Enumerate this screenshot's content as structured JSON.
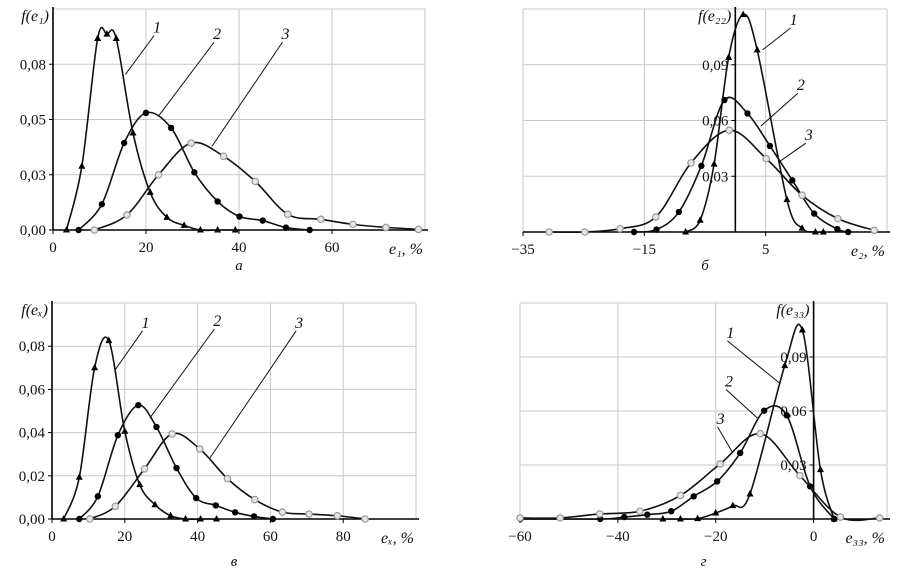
{
  "chart_data": [
    {
      "id": "a",
      "type": "line",
      "panel_label": "а",
      "ylabel": "f(e₁)",
      "xlabel": "e₁, %",
      "xlim": [
        0,
        80
      ],
      "ylim": [
        0,
        0.11
      ],
      "xticks": [
        {
          "v": 0,
          "label": "0"
        },
        {
          "v": 20,
          "label": "20"
        },
        {
          "v": 40,
          "label": "40"
        },
        {
          "v": 60,
          "label": "60"
        }
      ],
      "xgrid": [
        0,
        20,
        40,
        60,
        80
      ],
      "yticks": [
        {
          "v": 0,
          "label": "0,00"
        },
        {
          "v": 0.0275,
          "label": "0,03"
        },
        {
          "v": 0.055,
          "label": "0,05"
        },
        {
          "v": 0.0825,
          "label": "0,08"
        }
      ],
      "ygrid": [
        0.0275,
        0.055,
        0.0825,
        0.11
      ],
      "yaxis_at_zero": false,
      "series": [
        {
          "name": "1",
          "marker": "triangle",
          "points": [
            [
              2.9,
              0
            ],
            [
              6.2,
              0.0317
            ],
            [
              9.6,
              0.0953
            ],
            [
              11.6,
              0.0975
            ],
            [
              13.6,
              0.0953
            ],
            [
              17.2,
              0.0483
            ],
            [
              20.9,
              0.0187
            ],
            [
              24.5,
              0.0063
            ],
            [
              28.2,
              0.0023
            ],
            [
              31.7,
              0
            ],
            [
              35.4,
              0
            ],
            [
              39.2,
              0
            ]
          ]
        },
        {
          "name": "2",
          "marker": "circle",
          "points": [
            [
              5.5,
              0
            ],
            [
              10.5,
              0.0128
            ],
            [
              15.3,
              0.0433
            ],
            [
              20,
              0.0583
            ],
            [
              25.4,
              0.0508
            ],
            [
              30.4,
              0.0287
            ],
            [
              35.4,
              0.0142
            ],
            [
              40.1,
              0.0067
            ],
            [
              45.1,
              0.0047
            ],
            [
              50.1,
              0.0012
            ],
            [
              55.2,
              0
            ]
          ]
        },
        {
          "name": "3",
          "marker": "open-circle",
          "points": [
            [
              8.9,
              0
            ],
            [
              15.9,
              0.0075
            ],
            [
              22.7,
              0.0275
            ],
            [
              29.7,
              0.0433
            ],
            [
              36.7,
              0.0367
            ],
            [
              43.5,
              0.0242
            ],
            [
              50.5,
              0.0078
            ],
            [
              57.6,
              0.0053
            ],
            [
              64.5,
              0.0028
            ],
            [
              71.6,
              0.0013
            ],
            [
              78.6,
              0.0003
            ]
          ]
        }
      ],
      "annotations": [
        {
          "text": "1",
          "at": [
            22.4,
            0.0983
          ],
          "to": [
            15.6,
            0.0775
          ]
        },
        {
          "text": "2",
          "at": [
            35.3,
            0.095
          ],
          "to": [
            22.7,
            0.0567
          ]
        },
        {
          "text": "3",
          "at": [
            50,
            0.095
          ],
          "to": [
            34.2,
            0.0417
          ]
        }
      ]
    },
    {
      "id": "b",
      "type": "line",
      "panel_label": "б",
      "ylabel": "f(e₂₂)",
      "xlabel": "e₂, %",
      "xlim": [
        -35,
        25
      ],
      "ylim": [
        0,
        0.12
      ],
      "xticks": [
        {
          "v": -35,
          "label": "−35"
        },
        {
          "v": -15,
          "label": "−15"
        },
        {
          "v": 5,
          "label": "5"
        }
      ],
      "xgrid": [
        -35,
        -15,
        5,
        25
      ],
      "yticks": [
        {
          "v": 0.03,
          "label": "0,03"
        },
        {
          "v": 0.06,
          "label": "0,06"
        },
        {
          "v": 0.09,
          "label": "0,09"
        }
      ],
      "ygrid": [
        0.03,
        0.06,
        0.09,
        0.12
      ],
      "yaxis_at_zero": true,
      "series": [
        {
          "name": "1",
          "marker": "triangle",
          "points": [
            [
              -8.2,
              0
            ],
            [
              -5.8,
              0.0063
            ],
            [
              -3.5,
              0.0365
            ],
            [
              -1.1,
              0.094
            ],
            [
              1.3,
              0.117
            ],
            [
              3.6,
              0.098
            ],
            [
              8.5,
              0.0174
            ],
            [
              11,
              0.002
            ],
            [
              13.2,
              0
            ],
            [
              14.5,
              0
            ]
          ]
        },
        {
          "name": "2",
          "marker": "circle",
          "points": [
            [
              -16.7,
              0
            ],
            [
              -13,
              0.0013
            ],
            [
              -9.3,
              0.0108
            ],
            [
              -5.6,
              0.0356
            ],
            [
              -1.8,
              0.071
            ],
            [
              2,
              0.0638
            ],
            [
              5.7,
              0.0463
            ],
            [
              9.4,
              0.0278
            ],
            [
              13,
              0.0099
            ],
            [
              16.8,
              0.0016
            ],
            [
              18.6,
              0
            ]
          ]
        },
        {
          "name": "3",
          "marker": "open-circle",
          "points": [
            [
              -30.7,
              0
            ],
            [
              -24.8,
              0
            ],
            [
              -19,
              0.0018
            ],
            [
              -13.1,
              0.0081
            ],
            [
              -7.3,
              0.0372
            ],
            [
              -1,
              0.0548
            ],
            [
              5.1,
              0.0395
            ],
            [
              11,
              0.0198
            ],
            [
              16.9,
              0.0072
            ],
            [
              22.9,
              0.0009
            ]
          ]
        }
      ],
      "annotations": [
        {
          "text": "1",
          "at": [
            9.6,
            0.1114
          ],
          "to": [
            4.5,
            0.098
          ]
        },
        {
          "text": "2",
          "at": [
            10.8,
            0.0763
          ],
          "to": [
            4.2,
            0.057
          ]
        },
        {
          "text": "3",
          "at": [
            12.1,
            0.0494
          ],
          "to": [
            7.2,
            0.0377
          ]
        }
      ]
    },
    {
      "id": "c",
      "type": "line",
      "panel_label": "в",
      "ylabel": "f(eₓ)",
      "xlabel": "eₓ, %",
      "xlim": [
        0,
        100
      ],
      "ylim": [
        0,
        0.1
      ],
      "xticks": [
        {
          "v": 0,
          "label": "0"
        },
        {
          "v": 20,
          "label": "20"
        },
        {
          "v": 40,
          "label": "40"
        },
        {
          "v": 60,
          "label": "60"
        },
        {
          "v": 80,
          "label": "80"
        }
      ],
      "xgrid": [
        0,
        20,
        40,
        60,
        80,
        100
      ],
      "yticks": [
        {
          "v": 0,
          "label": "0,00"
        },
        {
          "v": 0.02,
          "label": "0,02"
        },
        {
          "v": 0.04,
          "label": "0,04"
        },
        {
          "v": 0.06,
          "label": "0,06"
        },
        {
          "v": 0.08,
          "label": "0,08"
        }
      ],
      "ygrid": [
        0.02,
        0.04,
        0.06,
        0.08,
        0.1
      ],
      "yaxis_at_zero": false,
      "series": [
        {
          "name": "1",
          "marker": "triangle",
          "points": [
            [
              3.2,
              0
            ],
            [
              7.5,
              0.0193
            ],
            [
              11.7,
              0.07
            ],
            [
              15.6,
              0.0826
            ],
            [
              20,
              0.0406
            ],
            [
              24.1,
              0.0159
            ],
            [
              28.3,
              0.0066
            ],
            [
              32.6,
              0.0015
            ],
            [
              36.7,
              0
            ],
            [
              40.8,
              0
            ],
            [
              45.2,
              0
            ]
          ]
        },
        {
          "name": "2",
          "marker": "circle",
          "points": [
            [
              7.5,
              0
            ],
            [
              12.6,
              0.0105
            ],
            [
              18.1,
              0.0388
            ],
            [
              23.7,
              0.0527
            ],
            [
              28.7,
              0.0426
            ],
            [
              34.2,
              0.0236
            ],
            [
              39.6,
              0.0097
            ],
            [
              45,
              0.0063
            ],
            [
              50.3,
              0.0031
            ],
            [
              55.5,
              0.0012
            ],
            [
              60.7,
              0
            ]
          ]
        },
        {
          "name": "3",
          "marker": "open-circle",
          "points": [
            [
              10.4,
              0
            ],
            [
              17.4,
              0.0059
            ],
            [
              25.4,
              0.0232
            ],
            [
              33,
              0.0394
            ],
            [
              40.6,
              0.0324
            ],
            [
              48.2,
              0.0187
            ],
            [
              55.7,
              0.009
            ],
            [
              63.3,
              0.0032
            ],
            [
              70.6,
              0.0023
            ],
            [
              78.4,
              0.0015
            ],
            [
              86,
              0
            ]
          ]
        }
      ],
      "annotations": [
        {
          "text": "1",
          "at": [
            25.7,
            0.0885
          ],
          "to": [
            17.4,
            0.0692
          ]
        },
        {
          "text": "2",
          "at": [
            45.4,
            0.0893
          ],
          "to": [
            26.9,
            0.0468
          ]
        },
        {
          "text": "3",
          "at": [
            67.9,
            0.0885
          ],
          "to": [
            43.4,
            0.0283
          ]
        }
      ]
    },
    {
      "id": "d",
      "type": "line",
      "panel_label": "г",
      "ylabel": "f(e₃₃)",
      "xlabel": "e₃₃, %",
      "xlim": [
        -60,
        15
      ],
      "ylim": [
        0,
        0.12
      ],
      "xticks": [
        {
          "v": -60,
          "label": "−60"
        },
        {
          "v": -40,
          "label": "−40"
        },
        {
          "v": -20,
          "label": "−20"
        },
        {
          "v": 0,
          "label": "0"
        }
      ],
      "xgrid": [
        -60,
        -40,
        -20,
        0,
        15
      ],
      "yticks": [
        {
          "v": 0.03,
          "label": "0,03"
        },
        {
          "v": 0.06,
          "label": "0,06"
        },
        {
          "v": 0.09,
          "label": "0,09"
        }
      ],
      "ygrid": [
        0.03,
        0.06,
        0.09,
        0.12
      ],
      "yaxis_at_zero": true,
      "series": [
        {
          "name": "1",
          "marker": "triangle",
          "points": [
            [
              -30.8,
              0
            ],
            [
              -27.2,
              0
            ],
            [
              -23.7,
              0.0002
            ],
            [
              -20,
              0.0033
            ],
            [
              -16.5,
              0.0074
            ],
            [
              -13,
              0.0139
            ],
            [
              -5.9,
              0.0852
            ],
            [
              -2.3,
              0.105
            ],
            [
              1.4,
              0.0274
            ],
            [
              4.2,
              0
            ]
          ]
        },
        {
          "name": "2",
          "marker": "circle",
          "points": [
            [
              -59.9,
              0
            ],
            [
              -43.6,
              0
            ],
            [
              -38.7,
              0.0011
            ],
            [
              -34,
              0.0024
            ],
            [
              -29.1,
              0.0043
            ],
            [
              -24.5,
              0.0126
            ],
            [
              -19.7,
              0.0209
            ],
            [
              -15,
              0.0367
            ],
            [
              -10.1,
              0.0602
            ],
            [
              -5.5,
              0.0576
            ],
            [
              -0.7,
              0.0181
            ],
            [
              4.2,
              0
            ]
          ]
        },
        {
          "name": "3",
          "marker": "open-circle",
          "points": [
            [
              -60,
              0.0006
            ],
            [
              -51.8,
              0.0006
            ],
            [
              -43.7,
              0.0028
            ],
            [
              -35.5,
              0.0043
            ],
            [
              -27.2,
              0.0131
            ],
            [
              -19.1,
              0.0306
            ],
            [
              -10.9,
              0.0474
            ],
            [
              -2.8,
              0.0241
            ],
            [
              5.5,
              0.0011
            ],
            [
              13.5,
              0.0006
            ]
          ]
        }
      ],
      "annotations": [
        {
          "text": "1",
          "at": [
            -17,
            0.1006
          ],
          "to": [
            -7,
            0.0756
          ]
        },
        {
          "text": "2",
          "at": [
            -17.3,
            0.0737
          ],
          "to": [
            -11.5,
            0.0561
          ]
        },
        {
          "text": "3",
          "at": [
            -19,
            0.0528
          ],
          "to": [
            -16.7,
            0.0376
          ]
        }
      ]
    }
  ]
}
